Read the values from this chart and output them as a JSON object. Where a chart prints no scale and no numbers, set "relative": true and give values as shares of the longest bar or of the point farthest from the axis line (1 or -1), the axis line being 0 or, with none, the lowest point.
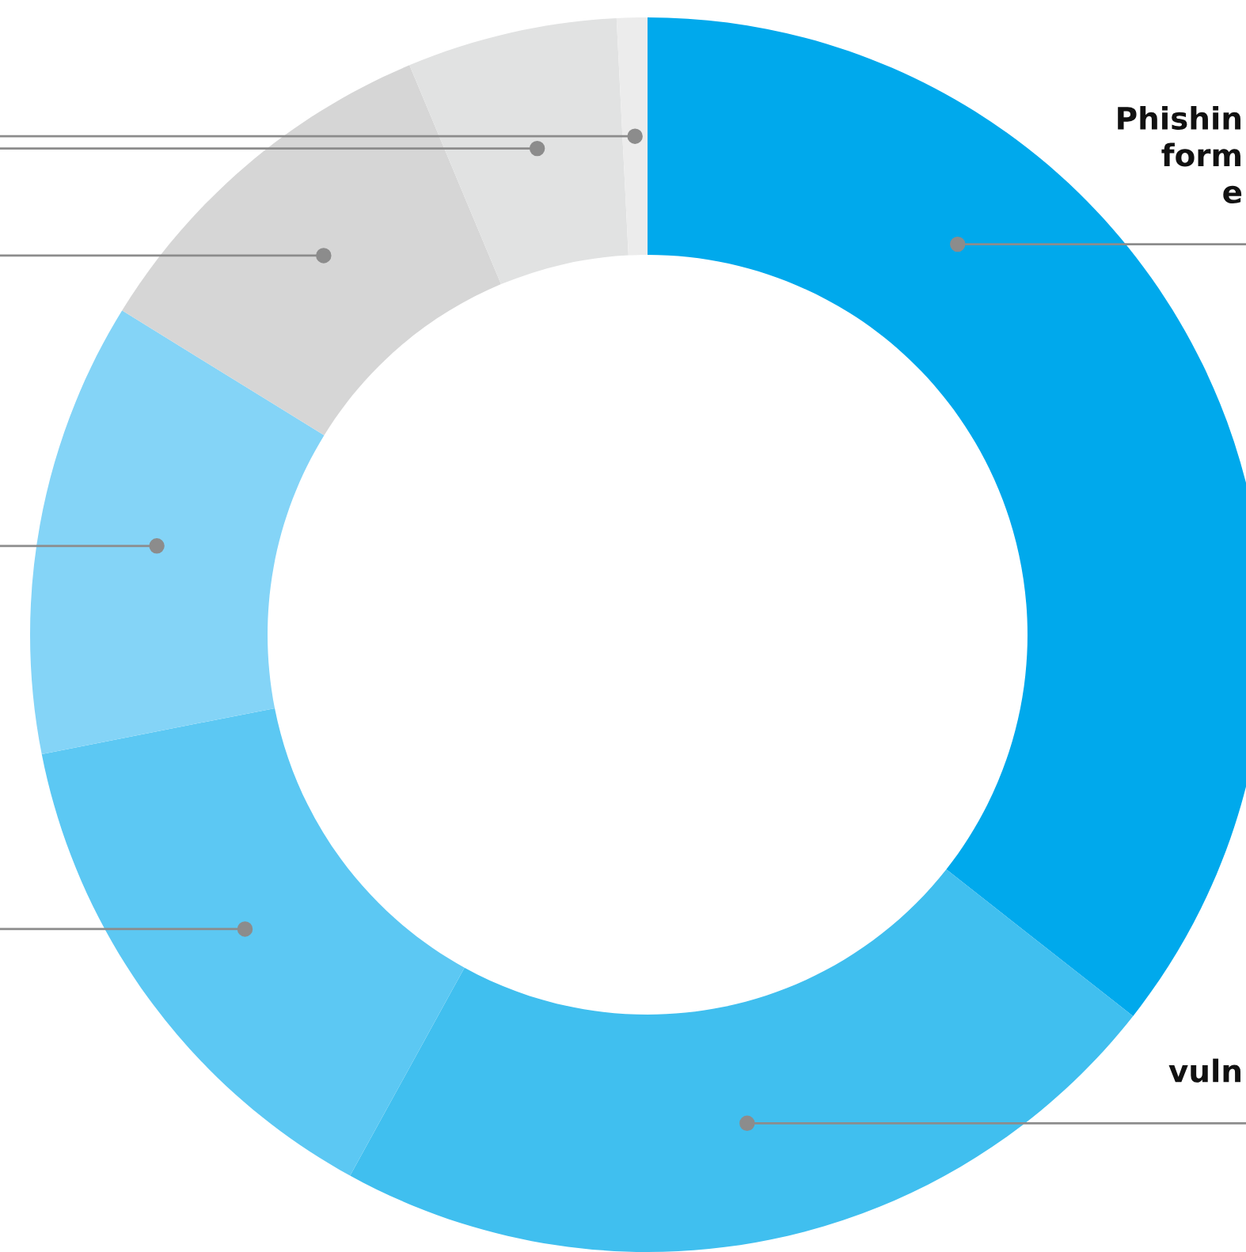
{
  "chart_data": {
    "type": "donut",
    "relative": true,
    "categories": [
      "Phishin\nform\ne",
      "vuln",
      null,
      null,
      null,
      null,
      null
    ],
    "values": [
      35.6,
      22.4,
      13.9,
      11.9,
      9.9,
      5.5,
      0.8
    ],
    "colors": [
      "#00a9ec",
      "#40bfef",
      "#5cc8f3",
      "#84d4f7",
      "#d6d6d6",
      "#e1e2e2",
      "#ececec"
    ],
    "legend": false
  }
}
